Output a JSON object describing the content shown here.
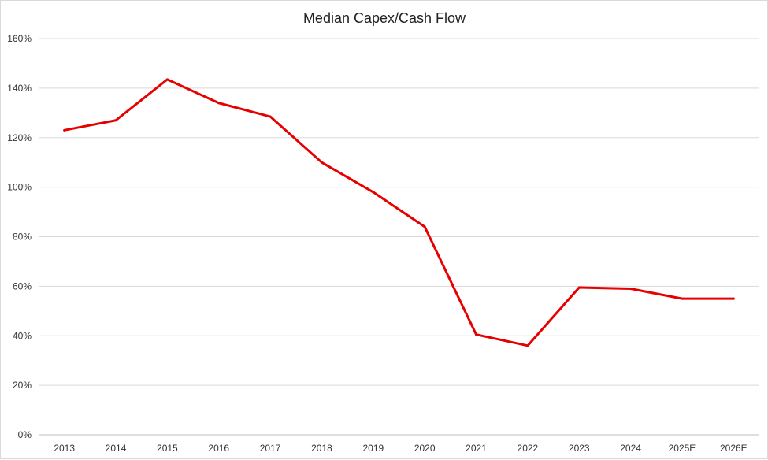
{
  "chart_data": {
    "type": "line",
    "title": "Median Capex/Cash Flow",
    "categories": [
      "2013",
      "2014",
      "2015",
      "2016",
      "2017",
      "2018",
      "2019",
      "2020",
      "2021",
      "2022",
      "2023",
      "2024",
      "2025E",
      "2026E"
    ],
    "series": [
      {
        "values": [
          123,
          127,
          143.5,
          134,
          128.5,
          110,
          98,
          84,
          40.5,
          36,
          59.5,
          59,
          55,
          55
        ],
        "color": "#e60000"
      }
    ],
    "ylim": [
      0,
      160
    ],
    "yticks": [
      0,
      20,
      40,
      60,
      80,
      100,
      120,
      140,
      160
    ],
    "ytick_labels": [
      "0%",
      "20%",
      "40%",
      "60%",
      "80%",
      "100%",
      "120%",
      "140%",
      "160%"
    ],
    "grid": true,
    "legend": false,
    "xlabel": "",
    "ylabel": ""
  }
}
